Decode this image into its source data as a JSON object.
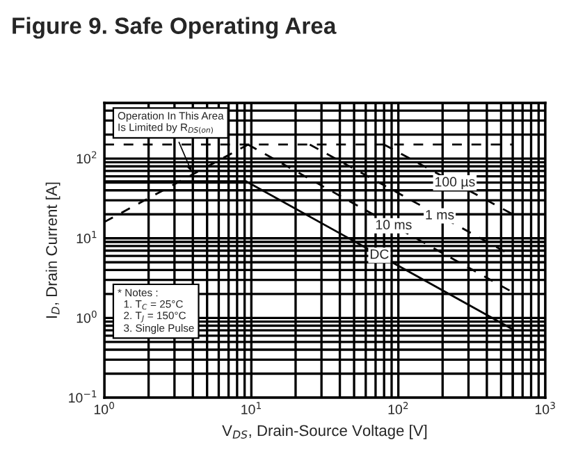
{
  "chart_data": {
    "type": "line",
    "title": "Figure 9. Safe Operating Area",
    "xlabel": "V$_{DS}$, Drain-Source Voltage [V]",
    "ylabel": "I$_{D}$, Drain Current [A]",
    "log": "xy",
    "grid": true,
    "xlim": [
      1,
      1000
    ],
    "ylim": [
      0.1,
      500
    ],
    "xticks": [
      {
        "value": 1,
        "label": "10$^{0}$"
      },
      {
        "value": 10,
        "label": "10$^{1}$"
      },
      {
        "value": 100,
        "label": "10$^{2}$"
      },
      {
        "value": 1000,
        "label": "10$^{3}$"
      }
    ],
    "yticks": [
      {
        "value": 0.1,
        "label": "10$^{−1}$"
      },
      {
        "value": 1,
        "label": "10$^{0}$"
      },
      {
        "value": 10,
        "label": "10$^{1}$"
      },
      {
        "value": 100,
        "label": "10$^{2}$"
      }
    ],
    "series": [
      {
        "color": "#000000",
        "line_style": "dashed",
        "x": [
          1,
          600
        ],
        "values": [
          150,
          150
        ]
      },
      {
        "color": "#000000",
        "line_style": "dashed",
        "x": [
          1,
          9.5
        ],
        "values": [
          16,
          150
        ]
      },
      {
        "name": "100 µs",
        "color": "#000000",
        "line_style": "dashed",
        "x": [
          80,
          600
        ],
        "values": [
          150,
          20
        ]
      },
      {
        "name": "1 ms",
        "color": "#000000",
        "line_style": "dashed",
        "x": [
          25,
          600
        ],
        "values": [
          150,
          6
        ]
      },
      {
        "name": "10 ms",
        "color": "#000000",
        "line_style": "dashed",
        "x": [
          9.5,
          600
        ],
        "values": [
          150,
          2.1
        ]
      },
      {
        "name": "DC",
        "color": "#000000",
        "line_style": "solid",
        "x": [
          1,
          9.2,
          600,
          600
        ],
        "values": [
          52,
          52,
          0.72,
          0.1
        ]
      }
    ],
    "annotations": [
      {
        "text": "Operation In This Area\nIs Limited by R$_{DS(on)}$",
        "x": 4,
        "y": 63
      },
      "* Notes :\n  1. T$_{C}$ = 25°C\n  2. T$_{J}$ = 150°C\n  3. Single Pulse"
    ]
  }
}
